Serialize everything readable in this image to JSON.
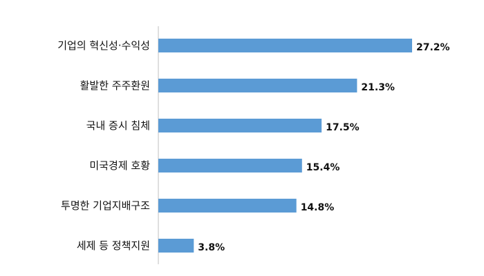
{
  "chart_data": {
    "type": "bar",
    "orientation": "horizontal",
    "title": "",
    "xlabel": "",
    "ylabel": "",
    "categories": [
      "기업의 혁신성·수익성",
      "활발한 주주환원",
      "국내 증시 침체",
      "미국경제 호황",
      "투명한 기업지배구조",
      "세제 등 정책지원"
    ],
    "values": [
      27.2,
      21.3,
      17.5,
      15.4,
      14.8,
      3.8
    ],
    "value_labels": [
      "27.2%",
      "21.3%",
      "17.5%",
      "15.4%",
      "14.8%",
      "3.8%"
    ],
    "xlim": [
      0,
      27.2
    ],
    "grid": false,
    "legend": "none",
    "bar_color": "#5B9BD5",
    "axis_color": "#BFBFBF"
  }
}
